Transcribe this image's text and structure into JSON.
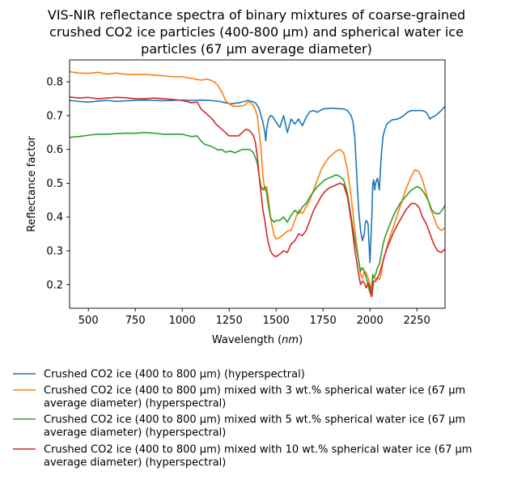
{
  "chart_data": {
    "type": "line",
    "title": "VIS-NIR reflectance spectra of binary mixtures of coarse-grained crushed CO2 ice particles (400-800 µm) and spherical water ice particles (67 µm average diameter)",
    "title_lines": [
      "VIS-NIR reflectance spectra of binary mixtures of coarse-grained",
      "crushed CO2 ice particles (400-800 µm) and spherical water ice",
      "particles (67 µm average diameter)"
    ],
    "xlabel_prefix": "Wavelength (",
    "xlabel_unit": "nm",
    "xlabel_suffix": ")",
    "ylabel": "Reflectance factor",
    "xlim": [
      400,
      2400
    ],
    "ylim": [
      0.13,
      0.865
    ],
    "xticks": [
      500,
      750,
      1000,
      1250,
      1500,
      1750,
      2000,
      2250
    ],
    "xtick_labels": [
      "500",
      "750",
      "1000",
      "1250",
      "1500",
      "1750",
      "2000",
      "2250"
    ],
    "yticks": [
      0.2,
      0.3,
      0.4,
      0.5,
      0.6,
      0.7,
      0.8
    ],
    "ytick_labels": [
      "0.2",
      "0.3",
      "0.4",
      "0.5",
      "0.6",
      "0.7",
      "0.8"
    ],
    "grid": false,
    "legend_position": "below",
    "series": [
      {
        "name": "Crushed CO2 ice (400 to 800 µm) (hyperspectral)",
        "label_lines": [
          "Crushed CO2 ice (400 to 800 µm) (hyperspectral)"
        ],
        "color": "#1f77b4",
        "x": [
          400,
          450,
          500,
          550,
          600,
          650,
          700,
          750,
          800,
          850,
          900,
          950,
          1000,
          1050,
          1100,
          1150,
          1200,
          1230,
          1260,
          1300,
          1330,
          1350,
          1370,
          1390,
          1400,
          1410,
          1420,
          1430,
          1440,
          1445,
          1450,
          1460,
          1470,
          1480,
          1490,
          1500,
          1520,
          1540,
          1560,
          1580,
          1600,
          1620,
          1640,
          1660,
          1680,
          1700,
          1720,
          1750,
          1800,
          1840,
          1860,
          1880,
          1900,
          1910,
          1920,
          1930,
          1940,
          1950,
          1960,
          1970,
          1975,
          1980,
          1990,
          2000,
          2005,
          2010,
          2015,
          2020,
          2025,
          2030,
          2040,
          2050,
          2055,
          2060,
          2070,
          2080,
          2090,
          2100,
          2120,
          2150,
          2180,
          2200,
          2220,
          2250,
          2280,
          2300,
          2310,
          2320,
          2330,
          2350,
          2380,
          2400
        ],
        "y": [
          0.745,
          0.742,
          0.74,
          0.743,
          0.745,
          0.742,
          0.744,
          0.745,
          0.746,
          0.745,
          0.744,
          0.745,
          0.746,
          0.745,
          0.746,
          0.745,
          0.742,
          0.738,
          0.735,
          0.738,
          0.742,
          0.745,
          0.742,
          0.738,
          0.73,
          0.72,
          0.7,
          0.68,
          0.65,
          0.625,
          0.66,
          0.69,
          0.7,
          0.698,
          0.69,
          0.68,
          0.665,
          0.7,
          0.65,
          0.69,
          0.675,
          0.69,
          0.67,
          0.695,
          0.712,
          0.715,
          0.71,
          0.72,
          0.722,
          0.72,
          0.72,
          0.715,
          0.7,
          0.68,
          0.63,
          0.52,
          0.42,
          0.36,
          0.33,
          0.35,
          0.38,
          0.39,
          0.38,
          0.265,
          0.33,
          0.4,
          0.5,
          0.51,
          0.48,
          0.5,
          0.515,
          0.48,
          0.53,
          0.58,
          0.64,
          0.66,
          0.675,
          0.68,
          0.688,
          0.69,
          0.7,
          0.71,
          0.715,
          0.715,
          0.715,
          0.71,
          0.7,
          0.69,
          0.695,
          0.7,
          0.715,
          0.728
        ]
      },
      {
        "name": "Crushed CO2 ice (400 to 800 µm) mixed with 3 wt.% spherical water ice (67 µm average diameter) (hyperspectral)",
        "label_lines": [
          "Crushed CO2 ice (400 to 800 µm) mixed with 3 wt.% spherical water ice (67 µm",
          "average diameter) (hyperspectral)"
        ],
        "color": "#ff7f0e",
        "x": [
          400,
          450,
          500,
          550,
          600,
          650,
          700,
          750,
          800,
          850,
          900,
          950,
          1000,
          1050,
          1100,
          1130,
          1150,
          1170,
          1190,
          1200,
          1210,
          1220,
          1230,
          1240,
          1250,
          1270,
          1300,
          1330,
          1350,
          1360,
          1380,
          1400,
          1420,
          1430,
          1440,
          1450,
          1460,
          1470,
          1480,
          1490,
          1500,
          1510,
          1520,
          1540,
          1560,
          1580,
          1600,
          1620,
          1640,
          1660,
          1680,
          1700,
          1720,
          1740,
          1760,
          1780,
          1800,
          1820,
          1840,
          1860,
          1880,
          1900,
          1920,
          1940,
          1950,
          1960,
          1970,
          1980,
          1990,
          2000,
          2005,
          2010,
          2015,
          2020,
          2030,
          2040,
          2050,
          2060,
          2070,
          2080,
          2100,
          2130,
          2160,
          2190,
          2220,
          2240,
          2260,
          2280,
          2300,
          2320,
          2340,
          2360,
          2380,
          2400
        ],
        "y": [
          0.83,
          0.826,
          0.825,
          0.828,
          0.823,
          0.826,
          0.822,
          0.822,
          0.822,
          0.82,
          0.818,
          0.815,
          0.815,
          0.81,
          0.805,
          0.808,
          0.805,
          0.8,
          0.79,
          0.78,
          0.77,
          0.76,
          0.745,
          0.74,
          0.735,
          0.728,
          0.728,
          0.73,
          0.74,
          0.74,
          0.73,
          0.7,
          0.6,
          0.52,
          0.48,
          0.49,
          0.45,
          0.4,
          0.37,
          0.345,
          0.335,
          0.337,
          0.34,
          0.348,
          0.358,
          0.36,
          0.39,
          0.42,
          0.41,
          0.43,
          0.45,
          0.48,
          0.51,
          0.54,
          0.56,
          0.575,
          0.585,
          0.595,
          0.6,
          0.59,
          0.54,
          0.46,
          0.36,
          0.27,
          0.23,
          0.22,
          0.24,
          0.235,
          0.22,
          0.2,
          0.165,
          0.19,
          0.22,
          0.225,
          0.215,
          0.22,
          0.215,
          0.23,
          0.27,
          0.29,
          0.33,
          0.38,
          0.43,
          0.48,
          0.52,
          0.54,
          0.535,
          0.51,
          0.47,
          0.43,
          0.4,
          0.37,
          0.36,
          0.368
        ]
      },
      {
        "name": "Crushed CO2 ice (400 to 800 µm) mixed with 5 wt.% spherical water ice (67 µm average diameter) (hyperspectral)",
        "label_lines": [
          "Crushed CO2 ice (400 to 800 µm) mixed with 5 wt.% spherical water ice (67 µm",
          "average diameter) (hyperspectral)"
        ],
        "color": "#2ca02c",
        "x": [
          400,
          450,
          500,
          550,
          600,
          650,
          700,
          750,
          800,
          850,
          900,
          950,
          1000,
          1050,
          1080,
          1100,
          1120,
          1150,
          1170,
          1190,
          1210,
          1230,
          1260,
          1280,
          1300,
          1320,
          1340,
          1360,
          1380,
          1400,
          1410,
          1420,
          1430,
          1440,
          1450,
          1460,
          1470,
          1480,
          1490,
          1500,
          1520,
          1540,
          1560,
          1580,
          1600,
          1620,
          1640,
          1660,
          1680,
          1700,
          1720,
          1740,
          1760,
          1780,
          1800,
          1820,
          1840,
          1860,
          1880,
          1900,
          1920,
          1940,
          1950,
          1960,
          1970,
          1980,
          1990,
          2000,
          2010,
          2015,
          2020,
          2030,
          2040,
          2050,
          2060,
          2070,
          2080,
          2100,
          2130,
          2160,
          2190,
          2220,
          2250,
          2270,
          2290,
          2310,
          2330,
          2350,
          2370,
          2390,
          2400
        ],
        "y": [
          0.636,
          0.638,
          0.642,
          0.645,
          0.645,
          0.647,
          0.648,
          0.648,
          0.65,
          0.648,
          0.645,
          0.645,
          0.645,
          0.638,
          0.64,
          0.625,
          0.615,
          0.61,
          0.605,
          0.598,
          0.6,
          0.592,
          0.595,
          0.59,
          0.595,
          0.6,
          0.6,
          0.6,
          0.59,
          0.56,
          0.52,
          0.49,
          0.48,
          0.49,
          0.47,
          0.43,
          0.4,
          0.39,
          0.385,
          0.39,
          0.39,
          0.4,
          0.385,
          0.405,
          0.42,
          0.41,
          0.43,
          0.44,
          0.46,
          0.475,
          0.49,
          0.5,
          0.51,
          0.515,
          0.52,
          0.525,
          0.52,
          0.51,
          0.47,
          0.4,
          0.33,
          0.27,
          0.24,
          0.25,
          0.24,
          0.22,
          0.2,
          0.175,
          0.2,
          0.23,
          0.22,
          0.23,
          0.25,
          0.26,
          0.29,
          0.32,
          0.34,
          0.37,
          0.41,
          0.44,
          0.46,
          0.48,
          0.49,
          0.485,
          0.47,
          0.45,
          0.42,
          0.41,
          0.41,
          0.425,
          0.435
        ]
      },
      {
        "name": "Crushed CO2 ice (400 to 800 µm) mixed with 10 wt.% spherical water ice (67 µm average diameter) (hyperspectral)",
        "label_lines": [
          "Crushed CO2 ice (400 to 800 µm) mixed with 10 wt.% spherical water ice (67 µm",
          "average diameter) (hyperspectral)"
        ],
        "color": "#d62728",
        "x": [
          400,
          450,
          500,
          550,
          600,
          650,
          700,
          750,
          800,
          850,
          900,
          950,
          1000,
          1050,
          1080,
          1100,
          1120,
          1140,
          1160,
          1180,
          1200,
          1220,
          1250,
          1280,
          1300,
          1320,
          1340,
          1360,
          1380,
          1390,
          1400,
          1410,
          1420,
          1430,
          1440,
          1450,
          1460,
          1470,
          1480,
          1490,
          1500,
          1520,
          1540,
          1560,
          1580,
          1600,
          1620,
          1640,
          1660,
          1680,
          1700,
          1720,
          1740,
          1760,
          1780,
          1800,
          1820,
          1840,
          1860,
          1880,
          1900,
          1920,
          1940,
          1950,
          1960,
          1970,
          1980,
          1990,
          2000,
          2010,
          2015,
          2020,
          2030,
          2040,
          2050,
          2060,
          2070,
          2080,
          2100,
          2130,
          2160,
          2190,
          2220,
          2240,
          2260,
          2280,
          2300,
          2320,
          2340,
          2360,
          2380,
          2400
        ],
        "y": [
          0.755,
          0.752,
          0.754,
          0.75,
          0.752,
          0.754,
          0.753,
          0.75,
          0.75,
          0.752,
          0.75,
          0.748,
          0.745,
          0.738,
          0.74,
          0.72,
          0.71,
          0.7,
          0.69,
          0.675,
          0.665,
          0.655,
          0.64,
          0.64,
          0.64,
          0.65,
          0.66,
          0.655,
          0.64,
          0.62,
          0.58,
          0.52,
          0.47,
          0.42,
          0.39,
          0.35,
          0.32,
          0.3,
          0.29,
          0.285,
          0.283,
          0.29,
          0.3,
          0.295,
          0.32,
          0.33,
          0.35,
          0.345,
          0.36,
          0.39,
          0.42,
          0.44,
          0.46,
          0.475,
          0.485,
          0.49,
          0.495,
          0.5,
          0.495,
          0.46,
          0.39,
          0.3,
          0.23,
          0.2,
          0.21,
          0.205,
          0.19,
          0.205,
          0.19,
          0.165,
          0.19,
          0.21,
          0.21,
          0.22,
          0.23,
          0.25,
          0.27,
          0.29,
          0.32,
          0.36,
          0.39,
          0.42,
          0.44,
          0.44,
          0.43,
          0.4,
          0.38,
          0.35,
          0.32,
          0.3,
          0.295,
          0.305
        ]
      }
    ]
  }
}
